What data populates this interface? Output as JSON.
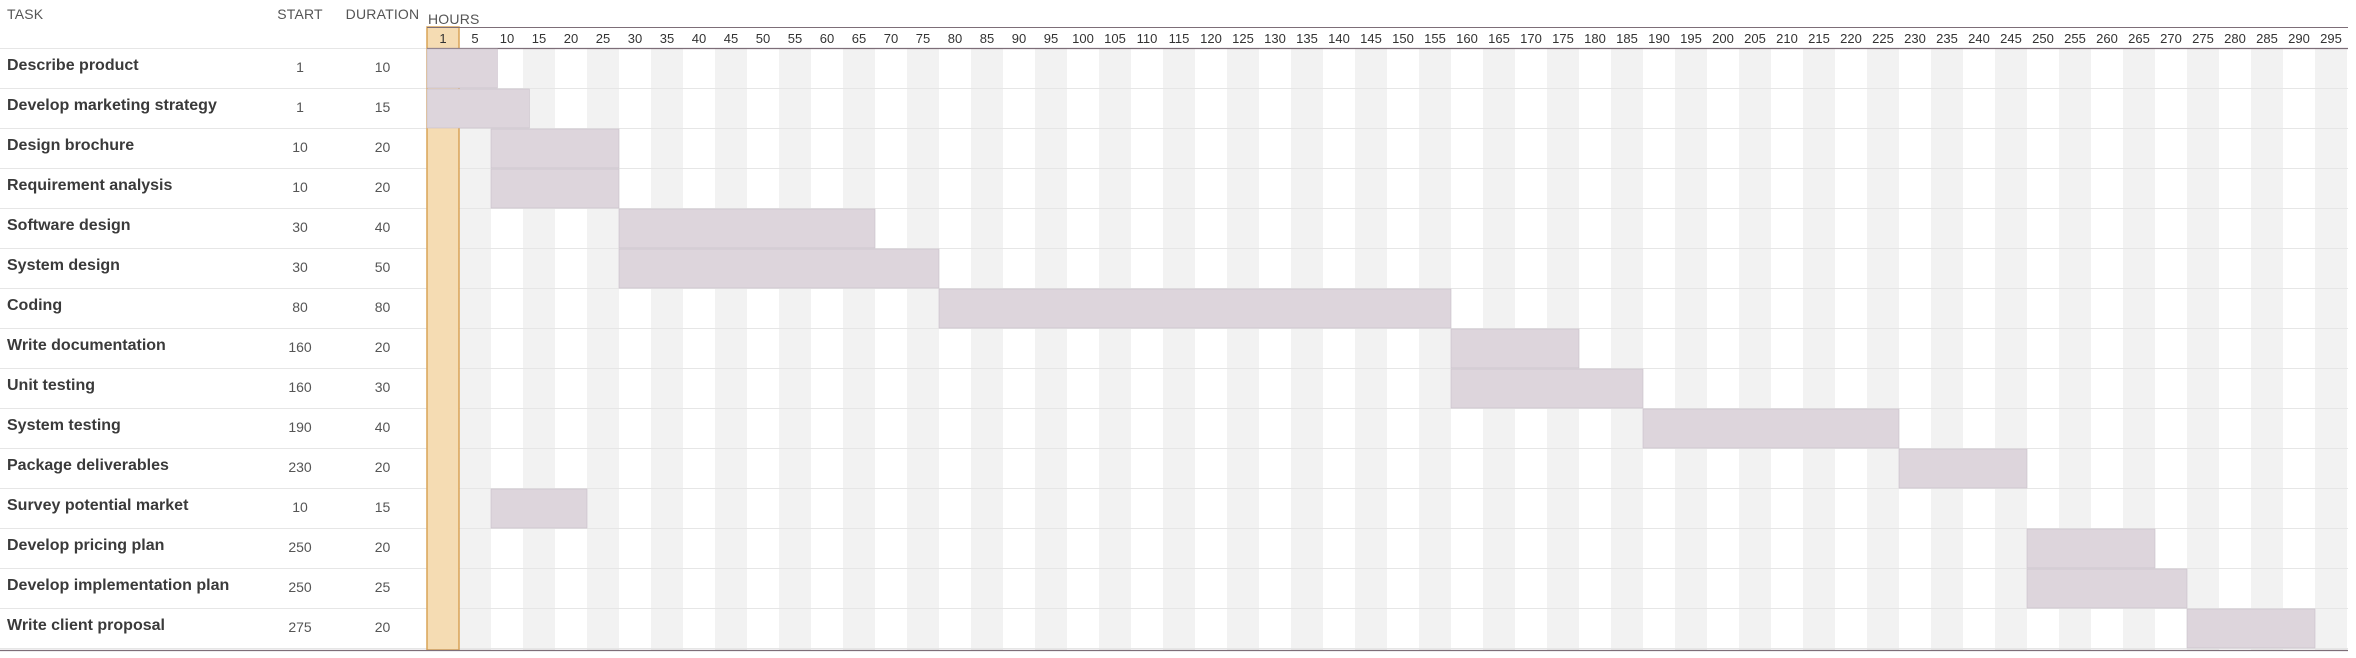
{
  "header": {
    "task": "TASK",
    "start": "START",
    "duration": "DURATION",
    "hours": "HOURS"
  },
  "colors": {
    "bar": "#ddd5dc",
    "bar_stroke": "#c9bfc8",
    "highlight": "#f5dcb3",
    "highlight_border": "#d9a356",
    "stripe": "#f2f2f2",
    "axis": "#7d6e78"
  },
  "chart_data": {
    "type": "gantt",
    "x_ticks": [
      1,
      5,
      10,
      15,
      20,
      25,
      30,
      35,
      40,
      45,
      50,
      55,
      60,
      65,
      70,
      75,
      80,
      85,
      90,
      95,
      100,
      105,
      110,
      115,
      120,
      125,
      130,
      135,
      140,
      145,
      150,
      155,
      160,
      165,
      170,
      175,
      180,
      185,
      190,
      195,
      200,
      205,
      210,
      215,
      220,
      225,
      230,
      235,
      240,
      245,
      250,
      255,
      260,
      265,
      270,
      275,
      280,
      285,
      290,
      295
    ],
    "highlighted_tick": 1,
    "tasks": [
      {
        "name": "Describe product",
        "start": 1,
        "duration": 10
      },
      {
        "name": "Develop marketing strategy",
        "start": 1,
        "duration": 15
      },
      {
        "name": "Design brochure",
        "start": 10,
        "duration": 20
      },
      {
        "name": "Requirement analysis",
        "start": 10,
        "duration": 20
      },
      {
        "name": "Software design",
        "start": 30,
        "duration": 40
      },
      {
        "name": "System design",
        "start": 30,
        "duration": 50
      },
      {
        "name": "Coding",
        "start": 80,
        "duration": 80
      },
      {
        "name": "Write documentation",
        "start": 160,
        "duration": 20
      },
      {
        "name": "Unit testing",
        "start": 160,
        "duration": 30
      },
      {
        "name": "System testing",
        "start": 190,
        "duration": 40
      },
      {
        "name": "Package deliverables",
        "start": 230,
        "duration": 20
      },
      {
        "name": "Survey potential market",
        "start": 10,
        "duration": 15
      },
      {
        "name": "Develop pricing plan",
        "start": 250,
        "duration": 20
      },
      {
        "name": "Develop implementation plan",
        "start": 250,
        "duration": 25
      },
      {
        "name": "Write client proposal",
        "start": 275,
        "duration": 20
      }
    ]
  }
}
